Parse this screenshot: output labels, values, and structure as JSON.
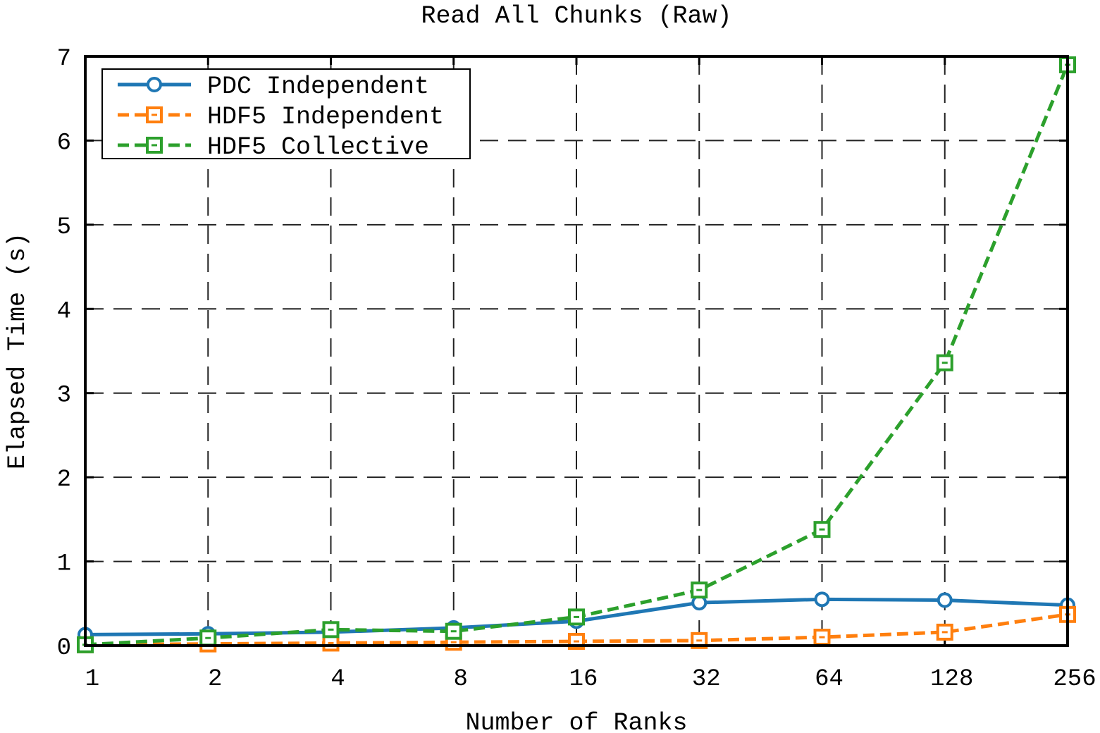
{
  "chart_data": {
    "type": "line",
    "title": "Read All Chunks (Raw)",
    "xlabel": "Number of Ranks",
    "ylabel": "Elapsed Time (s)",
    "x": [
      "1",
      "2",
      "4",
      "8",
      "16",
      "32",
      "64",
      "128",
      "256"
    ],
    "x_scale": "log2",
    "ylim": [
      0,
      7
    ],
    "yticks": [
      "0",
      "1",
      "2",
      "3",
      "4",
      "5",
      "6",
      "7"
    ],
    "grid": true,
    "legend_position": "top-left",
    "series": [
      {
        "name": "PDC Independent",
        "color": "#1f77b4",
        "line_style": "solid",
        "marker": "circle",
        "values": [
          0.13,
          0.14,
          0.16,
          0.21,
          0.29,
          0.51,
          0.55,
          0.54,
          0.48
        ]
      },
      {
        "name": "HDF5 Independent",
        "color": "#ff7f0e",
        "line_style": "dashed",
        "marker": "square",
        "values": [
          0.01,
          0.02,
          0.03,
          0.04,
          0.05,
          0.06,
          0.1,
          0.16,
          0.37
        ]
      },
      {
        "name": "HDF5 Collective",
        "color": "#2ca02c",
        "line_style": "dashed",
        "marker": "square",
        "values": [
          0.01,
          0.09,
          0.19,
          0.17,
          0.34,
          0.66,
          1.38,
          3.36,
          6.9
        ]
      }
    ]
  }
}
